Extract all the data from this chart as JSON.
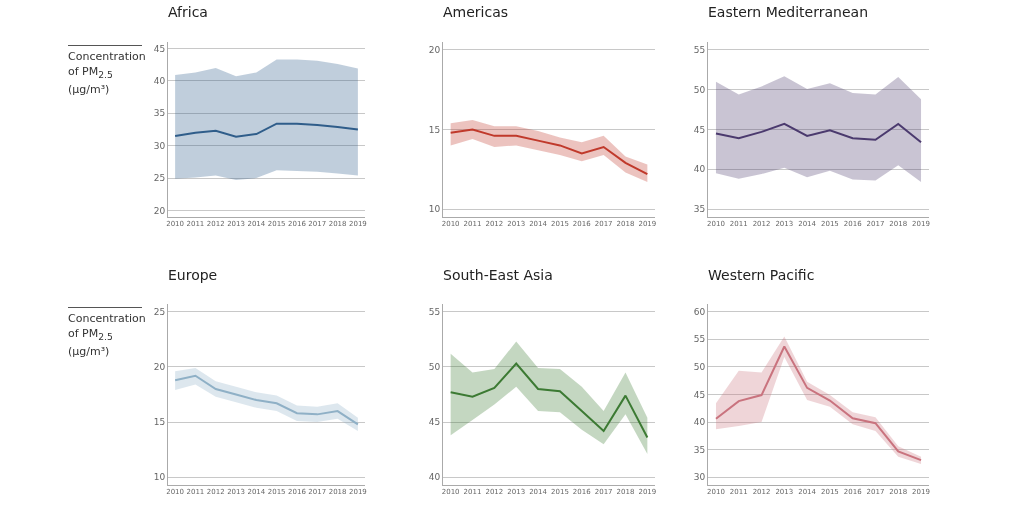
{
  "chart_data": [
    {
      "type": "line",
      "title": "Africa",
      "ylabel": "Concentration of PM$_{2.5}$ (µg/m³)",
      "categories": [
        "2010",
        "2011",
        "2012",
        "2013",
        "2014",
        "2015",
        "2016",
        "2017",
        "2018",
        "2019"
      ],
      "ylim": [
        19,
        46
      ],
      "yticks": [
        20,
        25,
        30,
        35,
        40,
        45
      ],
      "grid": "y",
      "series": [
        {
          "color": "#2f5d8a",
          "values": [
            31.5,
            32.0,
            32.3,
            31.4,
            31.8,
            33.4,
            33.4,
            33.2,
            32.9,
            32.5
          ],
          "upper": [
            40.9,
            41.3,
            42.0,
            40.7,
            41.3,
            43.3,
            43.3,
            43.1,
            42.6,
            41.9
          ],
          "lower": [
            24.9,
            25.1,
            25.4,
            24.7,
            25.0,
            26.2,
            26.1,
            26.0,
            25.7,
            25.4
          ]
        }
      ]
    },
    {
      "type": "line",
      "title": "Americas",
      "categories": [
        "2010",
        "2011",
        "2012",
        "2013",
        "2014",
        "2015",
        "2016",
        "2017",
        "2018",
        "2019"
      ],
      "ylim": [
        9.5,
        20.5
      ],
      "yticks": [
        10,
        15,
        20
      ],
      "grid": "y",
      "series": [
        {
          "color": "#c0392b",
          "values": [
            14.8,
            15.0,
            14.6,
            14.6,
            14.3,
            14.0,
            13.5,
            13.9,
            12.9,
            12.2
          ],
          "upper": [
            15.4,
            15.6,
            15.2,
            15.2,
            14.9,
            14.5,
            14.2,
            14.6,
            13.3,
            12.8
          ],
          "lower": [
            14.0,
            14.4,
            13.9,
            14.0,
            13.7,
            13.4,
            13.0,
            13.4,
            12.3,
            11.7
          ]
        }
      ]
    },
    {
      "type": "line",
      "title": "Eastern Mediterranean",
      "categories": [
        "2010",
        "2011",
        "2012",
        "2013",
        "2014",
        "2015",
        "2016",
        "2017",
        "2018",
        "2019"
      ],
      "ylim": [
        34,
        56
      ],
      "yticks": [
        35,
        40,
        45,
        50,
        55
      ],
      "grid": "y",
      "series": [
        {
          "color": "#4b3a6e",
          "values": [
            44.5,
            43.9,
            44.7,
            45.7,
            44.2,
            44.9,
            43.9,
            43.7,
            45.7,
            43.4
          ],
          "upper": [
            51.0,
            49.4,
            50.4,
            51.7,
            50.1,
            50.8,
            49.6,
            49.4,
            51.6,
            48.8
          ],
          "lower": [
            39.5,
            38.8,
            39.4,
            40.2,
            39.0,
            39.8,
            38.7,
            38.6,
            40.5,
            38.4
          ]
        }
      ]
    },
    {
      "type": "line",
      "title": "Europe",
      "ylabel": "Concentration of PM$_{2.5}$ (µg/m³)",
      "categories": [
        "2010",
        "2011",
        "2012",
        "2013",
        "2014",
        "2015",
        "2016",
        "2017",
        "2018",
        "2019"
      ],
      "ylim": [
        9.3,
        25.7
      ],
      "yticks": [
        10,
        15,
        20,
        25
      ],
      "grid": "y",
      "series": [
        {
          "color": "#8fb0c6",
          "values": [
            18.8,
            19.2,
            18.0,
            17.5,
            17.0,
            16.7,
            15.8,
            15.7,
            16.0,
            14.8
          ],
          "upper": [
            19.6,
            19.9,
            18.7,
            18.2,
            17.7,
            17.4,
            16.5,
            16.4,
            16.7,
            15.4
          ],
          "lower": [
            17.9,
            18.4,
            17.3,
            16.8,
            16.3,
            16.0,
            15.1,
            15.0,
            15.3,
            14.2
          ]
        }
      ]
    },
    {
      "type": "line",
      "title": "South-East Asia",
      "categories": [
        "2010",
        "2011",
        "2012",
        "2013",
        "2014",
        "2015",
        "2016",
        "2017",
        "2018",
        "2019"
      ],
      "ylim": [
        39.3,
        55.7
      ],
      "yticks": [
        40,
        45,
        50,
        55
      ],
      "grid": "y",
      "series": [
        {
          "color": "#3c7a33",
          "values": [
            47.7,
            47.3,
            48.1,
            50.3,
            48.0,
            47.8,
            46.0,
            44.2,
            47.4,
            43.6
          ],
          "upper": [
            51.2,
            49.5,
            49.8,
            52.3,
            49.9,
            49.8,
            48.2,
            46.0,
            49.5,
            45.4
          ],
          "lower": [
            43.8,
            45.2,
            46.6,
            48.2,
            46.0,
            45.9,
            44.3,
            43.0,
            45.7,
            42.1
          ]
        }
      ]
    },
    {
      "type": "line",
      "title": "Western Pacific",
      "categories": [
        "2010",
        "2011",
        "2012",
        "2013",
        "2014",
        "2015",
        "2016",
        "2017",
        "2018",
        "2019"
      ],
      "ylim": [
        28.6,
        61.4
      ],
      "yticks": [
        30,
        35,
        40,
        45,
        50,
        55,
        60
      ],
      "grid": "y",
      "series": [
        {
          "color": "#c9737e",
          "values": [
            40.6,
            43.8,
            44.9,
            53.7,
            46.2,
            43.9,
            40.7,
            39.8,
            34.7,
            33.1
          ],
          "upper": [
            43.4,
            49.3,
            49.0,
            55.5,
            47.3,
            44.9,
            41.8,
            40.9,
            35.6,
            33.7
          ],
          "lower": [
            38.7,
            39.3,
            40.0,
            51.8,
            44.0,
            42.8,
            39.6,
            38.4,
            33.7,
            32.4
          ]
        }
      ]
    }
  ]
}
